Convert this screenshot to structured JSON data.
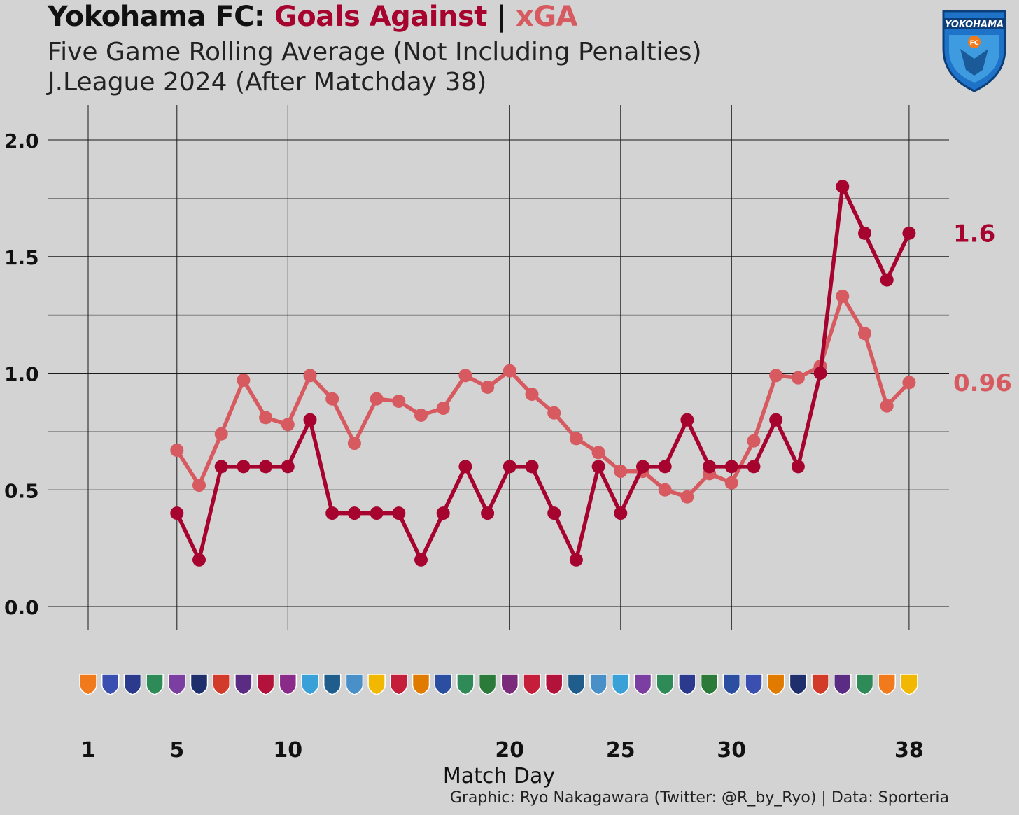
{
  "title": {
    "team": "Yokohama FC:",
    "goals_against": "Goals Against",
    "separator": "|",
    "xga": "xGA"
  },
  "subtitle_line1": "Five Game Rolling Average (Not Including Penalties)",
  "subtitle_line2": "J.League 2024 (After Matchday 38)",
  "caption": "Graphic: Ryo Nakagawara (Twitter: @R_by_Ryo) | Data: Sporteria",
  "logo_text": "YOKOHAMA",
  "logo_emblem_text": "FC",
  "colors": {
    "background": "#d3d3d3",
    "goals_against": "#a6032f",
    "xga": "#d65a5f",
    "grid": "#1a1a1a"
  },
  "chart_data": {
    "type": "line",
    "title": "Yokohama FC: Goals Against | xGA",
    "xlabel": "Match Day",
    "ylabel": "",
    "xlim": [
      1,
      38
    ],
    "ylim": [
      0,
      2
    ],
    "x_ticks": [
      1,
      5,
      10,
      20,
      25,
      30,
      38
    ],
    "y_ticks": [
      "0.0",
      "0.5",
      "1.0",
      "1.5",
      "2.0"
    ],
    "y_tick_values": [
      0,
      0.5,
      1.0,
      1.5,
      2.0
    ],
    "x": [
      5,
      6,
      7,
      8,
      9,
      10,
      11,
      12,
      13,
      14,
      15,
      16,
      17,
      18,
      19,
      20,
      21,
      22,
      23,
      24,
      25,
      26,
      27,
      28,
      29,
      30,
      31,
      32,
      33,
      34,
      35,
      36,
      37,
      38
    ],
    "series": [
      {
        "name": "Goals Against",
        "color": "#a6032f",
        "end_label": "1.6",
        "values": [
          0.4,
          0.2,
          0.6,
          0.6,
          0.6,
          0.6,
          0.8,
          0.4,
          0.4,
          0.4,
          0.4,
          0.2,
          0.4,
          0.6,
          0.4,
          0.6,
          0.6,
          0.4,
          0.2,
          0.6,
          0.4,
          0.6,
          0.6,
          0.8,
          0.6,
          0.6,
          0.6,
          0.8,
          0.6,
          1.0,
          1.8,
          1.6,
          1.4,
          1.6
        ]
      },
      {
        "name": "xGA",
        "color": "#d65a5f",
        "end_label": "0.96",
        "values": [
          0.67,
          0.52,
          0.74,
          0.97,
          0.81,
          0.78,
          0.99,
          0.89,
          0.7,
          0.89,
          0.88,
          0.82,
          0.85,
          0.99,
          0.94,
          1.01,
          0.91,
          0.83,
          0.72,
          0.66,
          0.58,
          0.58,
          0.5,
          0.47,
          0.57,
          0.53,
          0.71,
          0.99,
          0.98,
          1.03,
          1.33,
          1.17,
          0.86,
          0.96
        ]
      }
    ],
    "opponent_badges": [
      {
        "x": 1,
        "color": "#f07a1c"
      },
      {
        "x": 2,
        "color": "#3a4fb0"
      },
      {
        "x": 3,
        "color": "#2b3a8c"
      },
      {
        "x": 4,
        "color": "#2e8b57"
      },
      {
        "x": 5,
        "color": "#7a3fa0"
      },
      {
        "x": 6,
        "color": "#1e2f6b"
      },
      {
        "x": 7,
        "color": "#d23a2a"
      },
      {
        "x": 8,
        "color": "#5b2c83"
      },
      {
        "x": 9,
        "color": "#b3123a"
      },
      {
        "x": 10,
        "color": "#8a2b8a"
      },
      {
        "x": 11,
        "color": "#3aa0d8"
      },
      {
        "x": 12,
        "color": "#1f5e8c"
      },
      {
        "x": 13,
        "color": "#4a90c8"
      },
      {
        "x": 14,
        "color": "#f2b800"
      },
      {
        "x": 15,
        "color": "#c41e3a"
      },
      {
        "x": 16,
        "color": "#e07b00"
      },
      {
        "x": 17,
        "color": "#2c4ea0"
      },
      {
        "x": 18,
        "color": "#2e8b57"
      },
      {
        "x": 19,
        "color": "#2b7a3a"
      },
      {
        "x": 20,
        "color": "#7a2b7a"
      },
      {
        "x": 21,
        "color": "#c41e3a"
      },
      {
        "x": 22,
        "color": "#b3123a"
      },
      {
        "x": 23,
        "color": "#1f5e8c"
      },
      {
        "x": 24,
        "color": "#4a90c8"
      },
      {
        "x": 25,
        "color": "#3aa0d8"
      },
      {
        "x": 26,
        "color": "#7a3fa0"
      },
      {
        "x": 27,
        "color": "#2e8b57"
      },
      {
        "x": 28,
        "color": "#2b3a8c"
      },
      {
        "x": 29,
        "color": "#2b7a3a"
      },
      {
        "x": 30,
        "color": "#2c4ea0"
      },
      {
        "x": 31,
        "color": "#3a4fb0"
      },
      {
        "x": 32,
        "color": "#e07b00"
      },
      {
        "x": 33,
        "color": "#1e2f6b"
      },
      {
        "x": 34,
        "color": "#d23a2a"
      },
      {
        "x": 35,
        "color": "#5b2c83"
      },
      {
        "x": 36,
        "color": "#2e8b57"
      },
      {
        "x": 37,
        "color": "#f07a1c"
      },
      {
        "x": 38,
        "color": "#f2b800"
      }
    ]
  }
}
